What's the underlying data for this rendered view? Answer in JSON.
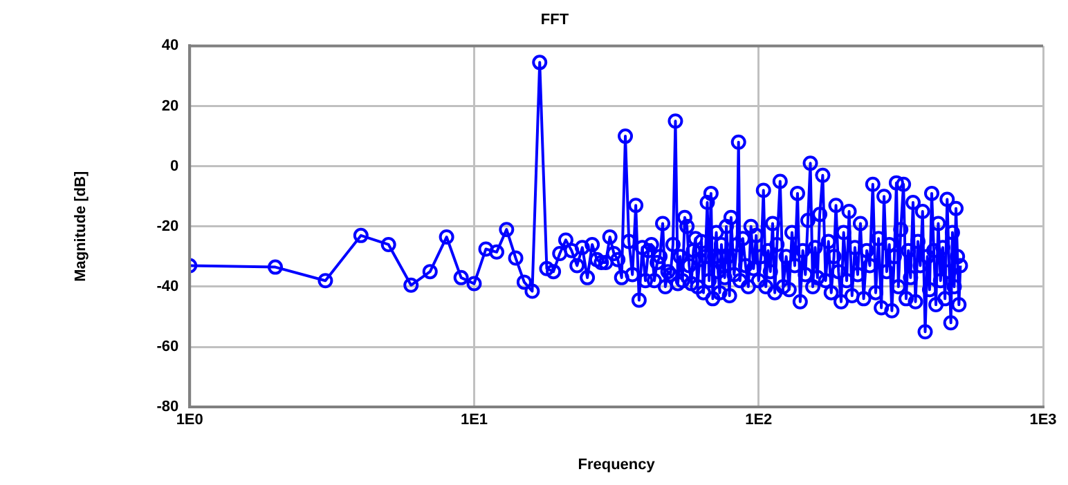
{
  "chart_data": {
    "type": "line",
    "title": "FFT",
    "xlabel": "Frequency",
    "ylabel": "Magnitude [dB]",
    "log": "x",
    "grid": true,
    "marker": "circle",
    "legend": false,
    "xlim": [
      1,
      1000
    ],
    "xticks": [
      {
        "value": 1,
        "label": "1E0"
      },
      {
        "value": 10,
        "label": "1E1"
      },
      {
        "value": 100,
        "label": "1E2"
      },
      {
        "value": 1000,
        "label": "1E3"
      }
    ],
    "ylim": [
      -80,
      40
    ],
    "yticks": [
      -80,
      -60,
      -40,
      -20,
      0,
      20,
      40
    ],
    "series": [
      {
        "color": "#0000ff",
        "x": [
          1,
          2,
          3,
          4,
          5,
          6,
          7,
          8,
          9,
          10,
          11,
          12,
          13,
          14,
          15,
          16,
          17,
          18,
          19,
          20,
          21,
          22,
          23,
          24,
          25,
          26,
          27,
          28,
          29,
          30,
          31,
          32,
          33,
          34,
          35,
          36,
          37,
          38,
          39,
          40,
          41,
          42,
          43,
          44,
          45,
          46,
          47,
          48,
          49,
          50,
          51,
          52,
          53,
          54,
          55,
          56,
          57,
          58,
          59,
          60,
          61,
          62,
          63,
          64,
          65,
          66,
          67,
          68,
          69,
          70,
          71,
          72,
          73,
          74,
          75,
          76,
          77,
          78,
          79,
          80,
          82,
          84,
          85,
          86,
          88,
          90,
          92,
          94,
          96,
          98,
          100,
          102,
          104,
          106,
          108,
          110,
          112,
          114,
          116,
          119,
          122,
          125,
          128,
          131,
          134,
          137,
          140,
          143,
          146,
          149,
          152,
          155,
          158,
          161,
          164,
          168,
          172,
          176,
          180,
          184,
          187,
          191,
          195,
          199,
          204,
          208,
          213,
          218,
          223,
          228,
          234,
          240,
          246,
          252,
          258,
          264,
          270,
          276,
          282,
          288,
          294,
          300,
          305,
          310,
          316,
          323,
          330,
          336,
          342,
          349,
          356,
          363,
          370,
          377,
          385,
          392,
          399,
          406,
          413,
          420,
          428,
          436,
          444,
          452,
          460,
          468,
          474,
          480,
          487,
          494,
          500,
          506,
          512
        ],
        "values": [
          -33,
          -33.5,
          -38,
          -23,
          -26,
          -39.5,
          -35,
          -23.5,
          -37,
          -39,
          -27.5,
          -28.5,
          -21,
          -30.5,
          -38.5,
          -41.5,
          34.5,
          -34,
          -35,
          -29,
          -24.5,
          -28,
          -33,
          -27,
          -37,
          -26,
          -31,
          -32,
          -32,
          -23.5,
          -29,
          -31,
          -37,
          10,
          -25,
          -36,
          -13,
          -44.5,
          -27,
          -38,
          -28,
          -26,
          -38,
          -32,
          -30,
          -19,
          -40,
          -35,
          -36,
          -26,
          15,
          -39,
          -30,
          -38,
          -17,
          -20,
          -33,
          -39,
          -28,
          -24,
          -40,
          -31,
          -25,
          -42,
          -30,
          -12,
          -38,
          -9,
          -44,
          -30,
          -22,
          -35,
          -42,
          -26,
          -33,
          -37,
          -20,
          -30,
          -43,
          -17,
          -36,
          -26,
          8,
          -38,
          -24,
          -33,
          -40,
          -20,
          -34,
          -23,
          -38,
          -30,
          -8,
          -40,
          -28,
          -35,
          -19,
          -42,
          -26,
          -5,
          -40,
          -30,
          -41,
          -22,
          -33,
          -9,
          -45,
          -28,
          -36,
          -18,
          1,
          -40,
          -27,
          -37,
          -16,
          -3,
          -38,
          -25,
          -42,
          -30,
          -13,
          -35,
          -45,
          -22,
          -38,
          -15,
          -43,
          -27,
          -36,
          -19,
          -44,
          -28,
          -33,
          -6,
          -42,
          -24,
          -47,
          -10,
          -35,
          -26,
          -48,
          -30,
          -5.5,
          -40,
          -21,
          -6,
          -44,
          -28,
          -37,
          -12,
          -45,
          -25,
          -33,
          -15,
          -55,
          -30,
          -41,
          -9,
          -28,
          -46,
          -19,
          -38,
          -27,
          -44,
          -11,
          -35,
          -52,
          -22,
          -40,
          -14,
          -30,
          -46,
          -33
        ]
      }
    ]
  }
}
